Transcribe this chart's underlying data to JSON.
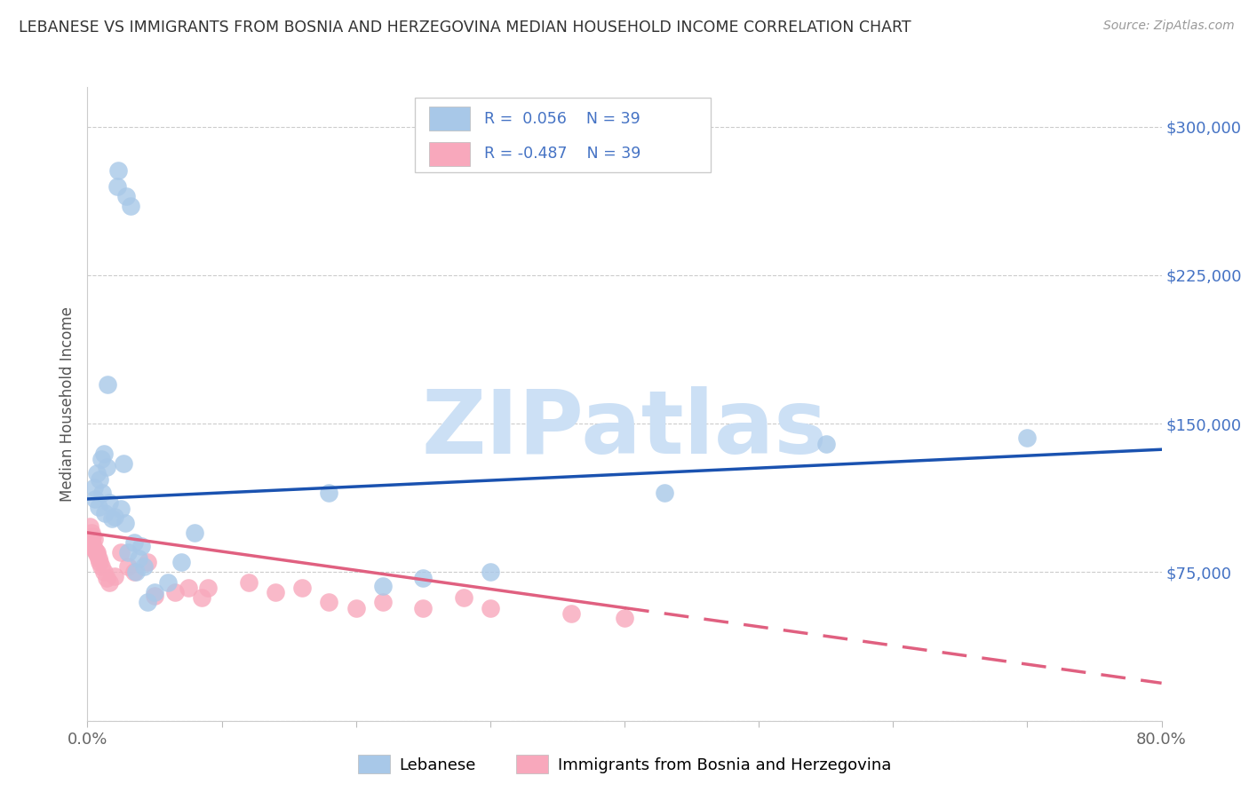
{
  "title": "LEBANESE VS IMMIGRANTS FROM BOSNIA AND HERZEGOVINA MEDIAN HOUSEHOLD INCOME CORRELATION CHART",
  "source": "Source: ZipAtlas.com",
  "ylabel": "Median Household Income",
  "yticks": [
    0,
    75000,
    150000,
    225000,
    300000
  ],
  "ytick_labels": [
    "",
    "$75,000",
    "$150,000",
    "$225,000",
    "$300,000"
  ],
  "xmin": 0.0,
  "xmax": 80.0,
  "ymin": 0,
  "ymax": 320000,
  "blue_R": "0.056",
  "blue_N": "39",
  "pink_R": "-0.487",
  "pink_N": "39",
  "blue_label": "Lebanese",
  "pink_label": "Immigrants from Bosnia and Herzegovina",
  "blue_scatter_color": "#a8c8e8",
  "pink_scatter_color": "#f8a8bc",
  "blue_line_color": "#1a52b0",
  "pink_line_color": "#e06080",
  "legend_text_color": "#4472c4",
  "watermark_text": "ZIPatlas",
  "watermark_color": "#cce0f5",
  "background_color": "#ffffff",
  "grid_color": "#cccccc",
  "blue_x": [
    0.5,
    0.6,
    0.7,
    0.8,
    2.2,
    2.3,
    2.9,
    3.2,
    1.5,
    1.2,
    1.4,
    1.0,
    0.9,
    1.1,
    1.3,
    1.6,
    1.8,
    2.0,
    2.5,
    2.7,
    3.0,
    3.5,
    4.0,
    4.5,
    5.0,
    6.0,
    7.0,
    18.0,
    22.0,
    25.0,
    43.0,
    55.0,
    70.0,
    3.8,
    4.2,
    8.0,
    30.0,
    2.8,
    3.6
  ],
  "blue_y": [
    118000,
    112000,
    125000,
    108000,
    270000,
    278000,
    265000,
    260000,
    170000,
    135000,
    128000,
    132000,
    122000,
    115000,
    105000,
    110000,
    102000,
    103000,
    107000,
    130000,
    85000,
    90000,
    88000,
    60000,
    65000,
    70000,
    80000,
    115000,
    68000,
    72000,
    115000,
    140000,
    143000,
    82000,
    78000,
    95000,
    75000,
    100000,
    75000
  ],
  "pink_x": [
    0.2,
    0.3,
    0.4,
    0.5,
    0.3,
    0.4,
    0.6,
    0.7,
    0.5,
    0.8,
    0.7,
    0.4,
    0.3,
    0.9,
    1.0,
    1.2,
    1.4,
    1.6,
    2.0,
    2.5,
    3.0,
    3.5,
    4.5,
    5.0,
    6.5,
    7.5,
    18.0,
    20.0,
    8.5,
    9.0,
    12.0,
    14.0,
    16.0,
    22.0,
    25.0,
    28.0,
    30.0,
    36.0,
    40.0
  ],
  "pink_y": [
    98000,
    95000,
    93000,
    92000,
    90000,
    88000,
    86000,
    84000,
    87000,
    82000,
    85000,
    89000,
    91000,
    80000,
    78000,
    75000,
    72000,
    70000,
    73000,
    85000,
    78000,
    75000,
    80000,
    63000,
    65000,
    67000,
    60000,
    57000,
    62000,
    67000,
    70000,
    65000,
    67000,
    60000,
    57000,
    62000,
    57000,
    54000,
    52000
  ],
  "blue_line_x0": 0,
  "blue_line_x1": 80,
  "blue_line_y0": 112000,
  "blue_line_y1": 137000,
  "pink_solid_x0": 0,
  "pink_solid_x1": 40,
  "pink_solid_y0": 95000,
  "pink_solid_y1": 57000,
  "pink_dash_x0": 40,
  "pink_dash_x1": 80,
  "pink_dash_y0": 57000,
  "pink_dash_y1": 19000
}
